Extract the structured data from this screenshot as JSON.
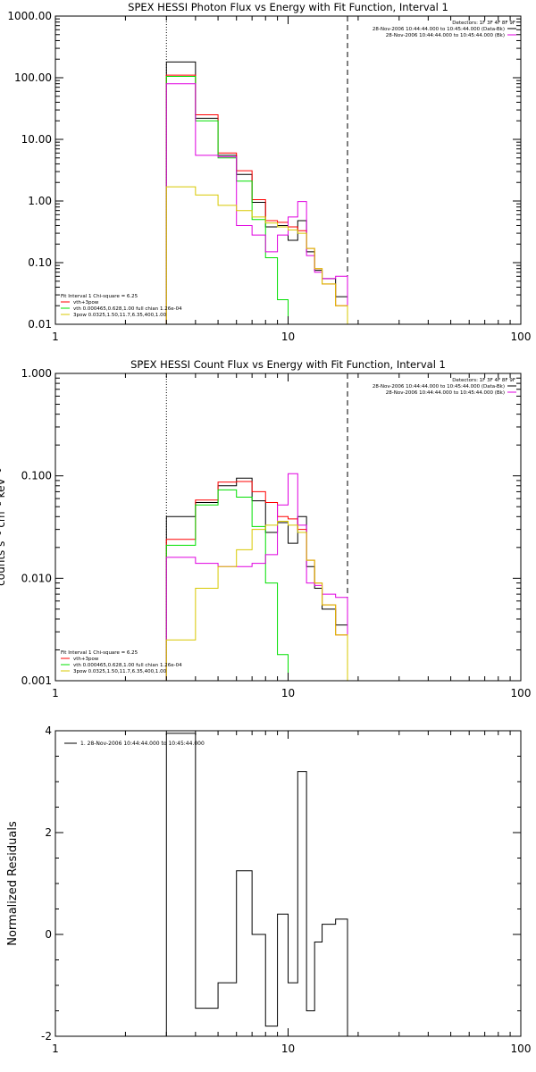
{
  "colors": {
    "background": "#ffffff",
    "axes": "#000000",
    "data_black": "#000000",
    "red": "#ff0000",
    "green": "#00e000",
    "magenta": "#e000e0",
    "yellow": "#d8c800"
  },
  "chart_data": [
    {
      "type": "line",
      "panel": "photon",
      "title": "SPEX HESSI Photon Flux vs Energy with Fit Function, Interval 1",
      "xscale": "log",
      "yscale": "log",
      "xlim": [
        1,
        100
      ],
      "ylim": [
        0.01,
        1000
      ],
      "xticks": [
        1,
        10,
        100
      ],
      "xtick_labels": [
        "1",
        "10",
        "100"
      ],
      "yticks": [
        0.01,
        0.1,
        1,
        10,
        100,
        1000
      ],
      "ytick_labels": [
        "0.01",
        "0.10",
        "1.00",
        "10.00",
        "100.00",
        "1000.00"
      ],
      "vlines": [
        {
          "x": 3,
          "style": "dotted"
        },
        {
          "x": 18,
          "style": "dashed"
        }
      ],
      "info_header": "Detectors: 1F 3F 4F 8F 9F",
      "info_lines": [
        {
          "text": "28-Nov-2006 10:44:44.000 to 10:45:44.000 (Data-Bk)",
          "color_key": "data_black"
        },
        {
          "text": "28-Nov-2006 10:44:44.000 to 10:45:44.000 (Bk)",
          "color_key": "magenta"
        }
      ],
      "fit_header": "Fit Interval 1   Chi-square = 6.25",
      "fit_lines": [
        {
          "text": "vth+3pow",
          "color_key": "red"
        },
        {
          "text": "vth 0.000465,0.628,1.00  full chian 1.26e-04",
          "color_key": "green"
        },
        {
          "text": "3pow 0.0325,1.50,11.7,6.35,400,1.00",
          "color_key": "yellow"
        }
      ],
      "edges": [
        3,
        4,
        5,
        6,
        7,
        8,
        9,
        10,
        11,
        12,
        13,
        14,
        16,
        18,
        20
      ],
      "series": [
        {
          "color_key": "data_black",
          "values": [
            180,
            22,
            5.5,
            2.7,
            0.95,
            0.38,
            0.4,
            0.23,
            0.48,
            0.15,
            0.075,
            0.055,
            0.028
          ]
        },
        {
          "color_key": "red",
          "values": [
            110,
            25,
            6,
            3.1,
            1.05,
            0.48,
            0.45,
            0.38,
            0.33,
            0.17,
            0.08,
            0.045,
            0.02,
            0.01
          ]
        },
        {
          "color_key": "green",
          "values": [
            105,
            20,
            5,
            2.1,
            0.5,
            0.12,
            0.025
          ]
        },
        {
          "color_key": "magenta",
          "values": [
            80,
            5.5,
            5.2,
            0.4,
            0.28,
            0.15,
            0.28,
            0.55,
            0.98,
            0.13,
            0.07,
            0.055,
            0.06
          ]
        },
        {
          "color_key": "yellow",
          "values": [
            1.7,
            1.25,
            0.85,
            0.7,
            0.55,
            0.44,
            0.38,
            0.34,
            0.3,
            0.17,
            0.08,
            0.045,
            0.02,
            0.01
          ]
        }
      ]
    },
    {
      "type": "line",
      "panel": "count",
      "title": "SPEX HESSI Count Flux vs Energy with Fit Function, Interval 1",
      "ylabel_partial": "counts s⁻¹ cm⁻² keV⁻¹",
      "xscale": "log",
      "yscale": "log",
      "xlim": [
        1,
        100
      ],
      "ylim": [
        0.001,
        1
      ],
      "xticks": [
        1,
        10,
        100
      ],
      "xtick_labels": [
        "1",
        "10",
        "100"
      ],
      "yticks": [
        0.001,
        0.01,
        0.1,
        1
      ],
      "ytick_labels": [
        "0.001",
        "0.010",
        "0.100",
        "1.000"
      ],
      "vlines": [
        {
          "x": 3,
          "style": "dotted"
        },
        {
          "x": 18,
          "style": "dashed"
        }
      ],
      "info_header": "Detectors: 1F 3F 4F 8F 9F",
      "info_lines": [
        {
          "text": "28-Nov-2006 10:44:44.000 to 10:45:44.000 (Data-Bk)",
          "color_key": "data_black"
        },
        {
          "text": "28-Nov-2006 10:44:44.000 to 10:45:44.000 (Bk)",
          "color_key": "magenta"
        }
      ],
      "fit_header": "Fit Interval 1   Chi-square = 6.25",
      "fit_lines": [
        {
          "text": "vth+3pow",
          "color_key": "red"
        },
        {
          "text": "vth 0.000465,0.628,1.00  full chian 1.26e-04",
          "color_key": "green"
        },
        {
          "text": "3pow 0.0325,1.50,11.7,6.35,400,1.00",
          "color_key": "yellow"
        }
      ],
      "edges": [
        3,
        4,
        5,
        6,
        7,
        8,
        9,
        10,
        11,
        12,
        13,
        14,
        16,
        18,
        20
      ],
      "series": [
        {
          "color_key": "data_black",
          "values": [
            0.04,
            0.055,
            0.08,
            0.095,
            0.057,
            0.028,
            0.035,
            0.022,
            0.04,
            0.013,
            0.008,
            0.005,
            0.0035
          ]
        },
        {
          "color_key": "red",
          "values": [
            0.024,
            0.058,
            0.087,
            0.088,
            0.07,
            0.055,
            0.04,
            0.038,
            0.03,
            0.015,
            0.009,
            0.0055,
            0.0028,
            0.001
          ]
        },
        {
          "color_key": "green",
          "values": [
            0.021,
            0.052,
            0.073,
            0.062,
            0.032,
            0.009,
            0.0018
          ]
        },
        {
          "color_key": "magenta",
          "values": [
            0.016,
            0.014,
            0.013,
            0.013,
            0.014,
            0.017,
            0.052,
            0.105,
            0.033,
            0.009,
            0.0085,
            0.007,
            0.0065
          ]
        },
        {
          "color_key": "yellow",
          "values": [
            0.0025,
            0.008,
            0.013,
            0.019,
            0.03,
            0.033,
            0.036,
            0.033,
            0.028,
            0.015,
            0.009,
            0.0055,
            0.0028,
            0.001
          ]
        }
      ]
    },
    {
      "type": "line",
      "panel": "residuals",
      "title": "",
      "ylabel": "Normalized Residuals",
      "xscale": "log",
      "yscale": "linear",
      "xlim": [
        1,
        100
      ],
      "ylim": [
        -2,
        4
      ],
      "xticks": [
        1,
        10,
        100
      ],
      "xtick_labels": [
        "1",
        "10",
        "100"
      ],
      "yticks": [
        -2,
        0,
        2,
        4
      ],
      "ytick_labels": [
        "-2",
        "0",
        "2",
        "4"
      ],
      "legend_line": {
        "text": "1. 28-Nov-2006 10:44:44.000 to 10:45:44.000",
        "color_key": "data_black"
      },
      "edges": [
        3,
        4,
        5,
        6,
        7,
        8,
        9,
        10,
        11,
        12,
        13,
        14,
        16,
        18
      ],
      "series": [
        {
          "color_key": "data_black",
          "values": [
            3.95,
            -1.45,
            -0.95,
            1.25,
            0.0,
            -1.8,
            0.4,
            -0.95,
            3.2,
            -1.5,
            -0.15,
            0.2,
            0.3
          ]
        }
      ]
    }
  ]
}
